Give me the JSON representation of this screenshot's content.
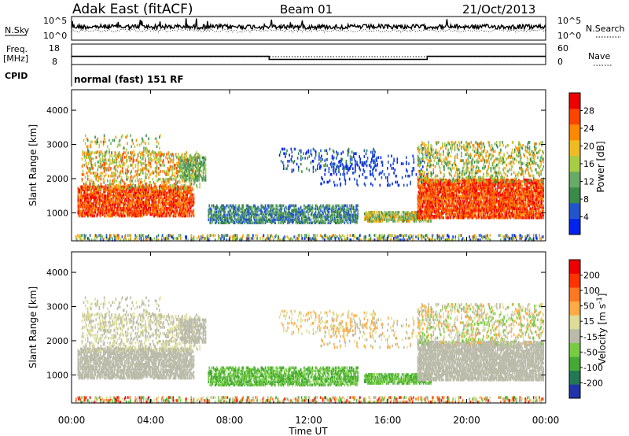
{
  "header": {
    "station": "Adak East (fitACF)",
    "beam": "Beam 01",
    "date": "21/Oct/2013"
  },
  "strips": {
    "nsky_label": "N.Sky",
    "nsky_ticks": [
      "10^5",
      "10^0"
    ],
    "nsearch_label": "N.Search",
    "nsearch_ticks": [
      "10^5",
      "10^0"
    ],
    "freq_label_1": "Freq.",
    "freq_label_2": "[MHz]",
    "freq_ticks": [
      "18",
      "8"
    ],
    "nave_label": "Nave",
    "nave_ticks": [
      "60",
      "0"
    ],
    "cpid_label": "CPID",
    "cpid_text": "normal (fast) 151 RF"
  },
  "colors": {
    "power": [
      "#0022ee",
      "#2255cc",
      "#3a8a4a",
      "#66aa66",
      "#a8cc44",
      "#eebb22",
      "#ff8800",
      "#ff4400",
      "#ee0000"
    ],
    "velocity": [
      "#2233aa",
      "#227755",
      "#44aa33",
      "#77cc44",
      "#bbbbaa",
      "#dddd99",
      "#ffaa44",
      "#ff7722",
      "#ff3300",
      "#ee0000"
    ]
  },
  "chart_data": [
    {
      "type": "heatmap",
      "title": "",
      "xlabel": "Time UT",
      "ylabel": "Slant Range [km]",
      "xlim": [
        "00:00",
        "24:00"
      ],
      "ylim": [
        180,
        4600
      ],
      "x_ticks": [
        "00:00",
        "04:00",
        "08:00",
        "12:00",
        "16:00",
        "20:00",
        "00:00"
      ],
      "y_ticks": [
        1000,
        2000,
        3000,
        4000
      ],
      "colorbar": {
        "label": "Power [dB]",
        "ticks": [
          4,
          8,
          12,
          16,
          20,
          24,
          28
        ],
        "range": [
          0,
          32
        ]
      }
    },
    {
      "type": "heatmap",
      "title": "",
      "xlabel": "Time UT",
      "ylabel": "Slant Range [km]",
      "xlim": [
        "00:00",
        "24:00"
      ],
      "ylim": [
        180,
        4600
      ],
      "x_ticks": [
        "00:00",
        "04:00",
        "08:00",
        "12:00",
        "16:00",
        "20:00",
        "00:00"
      ],
      "y_ticks": [
        1000,
        2000,
        3000,
        4000
      ],
      "colorbar": {
        "label": "Velocity [m s^-1]",
        "ticks": [
          "200",
          "100",
          "50",
          "15",
          "-15",
          "-50",
          "-100",
          "-200"
        ]
      }
    }
  ],
  "frequency_trace": {
    "segments": [
      {
        "start": "00:00",
        "end": "10:00",
        "mhz": 12
      },
      {
        "start": "10:00",
        "end": "18:00",
        "mhz": 10.5
      },
      {
        "start": "18:00",
        "end": "24:00",
        "mhz": 12
      }
    ]
  }
}
